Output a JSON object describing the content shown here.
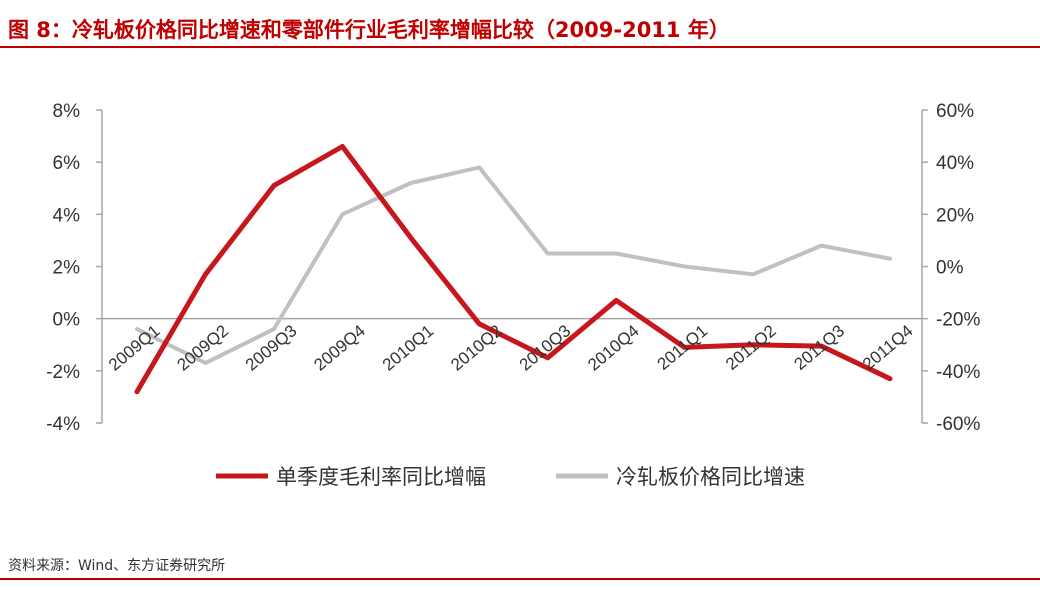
{
  "header": {
    "title": "图 8：冷轧板价格同比增速和零部件行业毛利率增幅比较（2009-2011 年）"
  },
  "footer": {
    "source": "资料来源：Wind、东方证券研究所"
  },
  "colors": {
    "accent": "#c00000",
    "series_margin": "#c8161d",
    "series_price": "#c0c0c4",
    "axis": "#a6a6a6"
  },
  "chart_data": {
    "type": "line",
    "title": "",
    "categories": [
      "2009Q1",
      "2009Q2",
      "2009Q3",
      "2009Q4",
      "2010Q1",
      "2010Q2",
      "2010Q3",
      "2010Q4",
      "2011Q1",
      "2011Q2",
      "2011Q3",
      "2011Q4"
    ],
    "y_left": {
      "ylim": [
        -4,
        8
      ],
      "ticks": [
        "-4%",
        "-2%",
        "0%",
        "2%",
        "4%",
        "6%",
        "8%"
      ]
    },
    "y_right": {
      "ylim": [
        -60,
        60
      ],
      "ticks": [
        "-60%",
        "-40%",
        "-20%",
        "0%",
        "20%",
        "40%",
        "60%"
      ]
    },
    "series": [
      {
        "name": "单季度毛利率同比增幅",
        "axis": "left",
        "values": [
          -2.8,
          1.7,
          5.1,
          6.6,
          3.1,
          -0.2,
          -1.5,
          0.7,
          -1.1,
          -1.0,
          -1.05,
          -2.3
        ]
      },
      {
        "name": "冷轧板价格同比增速",
        "axis": "right",
        "values": [
          -24,
          -37,
          -24,
          20,
          32,
          38,
          5,
          5,
          0,
          -3,
          8,
          3
        ]
      }
    ],
    "legend": "bottom",
    "grid": false
  }
}
